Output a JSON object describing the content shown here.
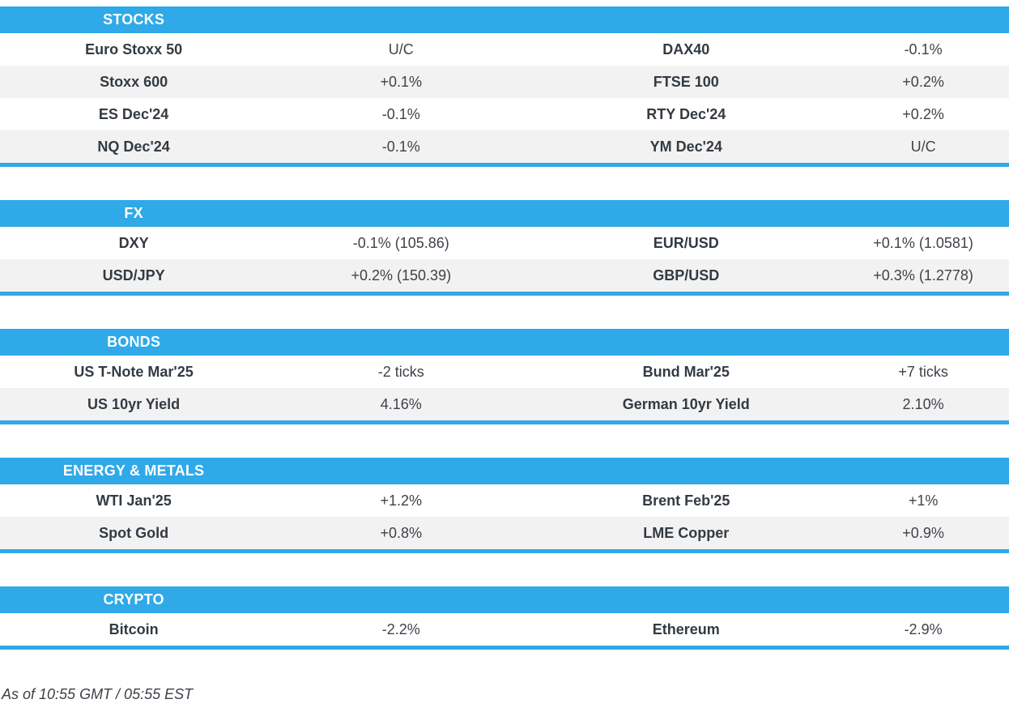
{
  "colors": {
    "accent": "#2fa9e8",
    "alt_row": "#f2f2f2",
    "label": "#333a42",
    "value": "#3e434a",
    "footer": "#3c4147"
  },
  "sections": [
    {
      "title": "STOCKS",
      "rows": [
        [
          "Euro Stoxx 50",
          "U/C",
          "DAX40",
          "-0.1%"
        ],
        [
          "Stoxx 600",
          "+0.1%",
          "FTSE 100",
          "+0.2%"
        ],
        [
          "ES Dec'24",
          "-0.1%",
          "RTY Dec'24",
          "+0.2%"
        ],
        [
          "NQ Dec'24",
          "-0.1%",
          "YM Dec'24",
          "U/C"
        ]
      ]
    },
    {
      "title": "FX",
      "rows": [
        [
          "DXY",
          "-0.1% (105.86)",
          "EUR/USD",
          "+0.1% (1.0581)"
        ],
        [
          "USD/JPY",
          "+0.2% (150.39)",
          "GBP/USD",
          "+0.3% (1.2778)"
        ]
      ]
    },
    {
      "title": "BONDS",
      "rows": [
        [
          "US T-Note Mar'25",
          "-2 ticks",
          "Bund Mar'25",
          "+7 ticks"
        ],
        [
          "US 10yr Yield",
          "4.16%",
          "German 10yr Yield",
          "2.10%"
        ]
      ]
    },
    {
      "title": "ENERGY & METALS",
      "rows": [
        [
          "WTI Jan'25",
          "+1.2%",
          "Brent Feb'25",
          "+1%"
        ],
        [
          "Spot Gold",
          "+0.8%",
          "LME Copper",
          "+0.9%"
        ]
      ]
    },
    {
      "title": "CRYPTO",
      "rows": [
        [
          "Bitcoin",
          "-2.2%",
          "Ethereum",
          "-2.9%"
        ]
      ]
    }
  ],
  "footer": {
    "as_of": "As of 10:55 GMT / 05:55 EST"
  }
}
